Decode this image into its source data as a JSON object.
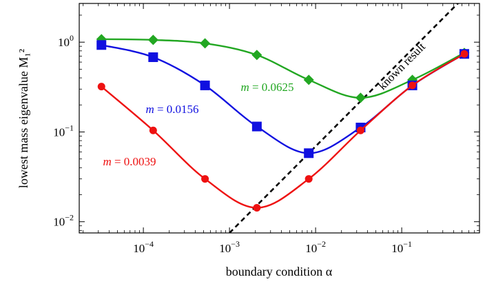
{
  "chart_data": {
    "type": "line",
    "xscale": "log",
    "yscale": "log",
    "xlim": [
      1.8e-05,
      0.8
    ],
    "ylim": [
      0.0075,
      2.7
    ],
    "grid": false,
    "xlabel": "boundary condition α",
    "ylabel": "lowest mass eigenvalue M₁²",
    "x_ticks": [
      {
        "value": 0.0001,
        "base": "10",
        "exp": "−4"
      },
      {
        "value": 0.001,
        "base": "10",
        "exp": "−3"
      },
      {
        "value": 0.01,
        "base": "10",
        "exp": "−2"
      },
      {
        "value": 0.1,
        "base": "10",
        "exp": "−1"
      }
    ],
    "y_ticks": [
      {
        "value": 0.01,
        "base": "10",
        "exp": "−2"
      },
      {
        "value": 0.1,
        "base": "10",
        "exp": "−1"
      },
      {
        "value": 1,
        "base": "10",
        "exp": "0"
      }
    ],
    "x": [
      3.26e-05,
      0.00013,
      0.00052,
      0.00208,
      0.00833,
      0.0333,
      0.133,
      0.533
    ],
    "series": [
      {
        "name": "m = 0.0625",
        "color": "#22a722",
        "marker": "diamond",
        "values": [
          1.08,
          1.06,
          0.97,
          0.72,
          0.38,
          0.24,
          0.38,
          0.76
        ]
      },
      {
        "name": "m = 0.0156",
        "color": "#1010e0",
        "marker": "square",
        "values": [
          0.93,
          0.68,
          0.33,
          0.115,
          0.058,
          0.112,
          0.33,
          0.74
        ]
      },
      {
        "name": "m = 0.0039",
        "color": "#ee1111",
        "marker": "circle",
        "values": [
          0.32,
          0.104,
          0.03,
          0.0143,
          0.03,
          0.104,
          0.33,
          0.74
        ]
      }
    ],
    "reference_line": {
      "name": "known result",
      "style": "dashed",
      "color": "#000000",
      "x": [
        0.001,
        0.5
      ],
      "y": [
        0.0075,
        3.0
      ]
    }
  }
}
